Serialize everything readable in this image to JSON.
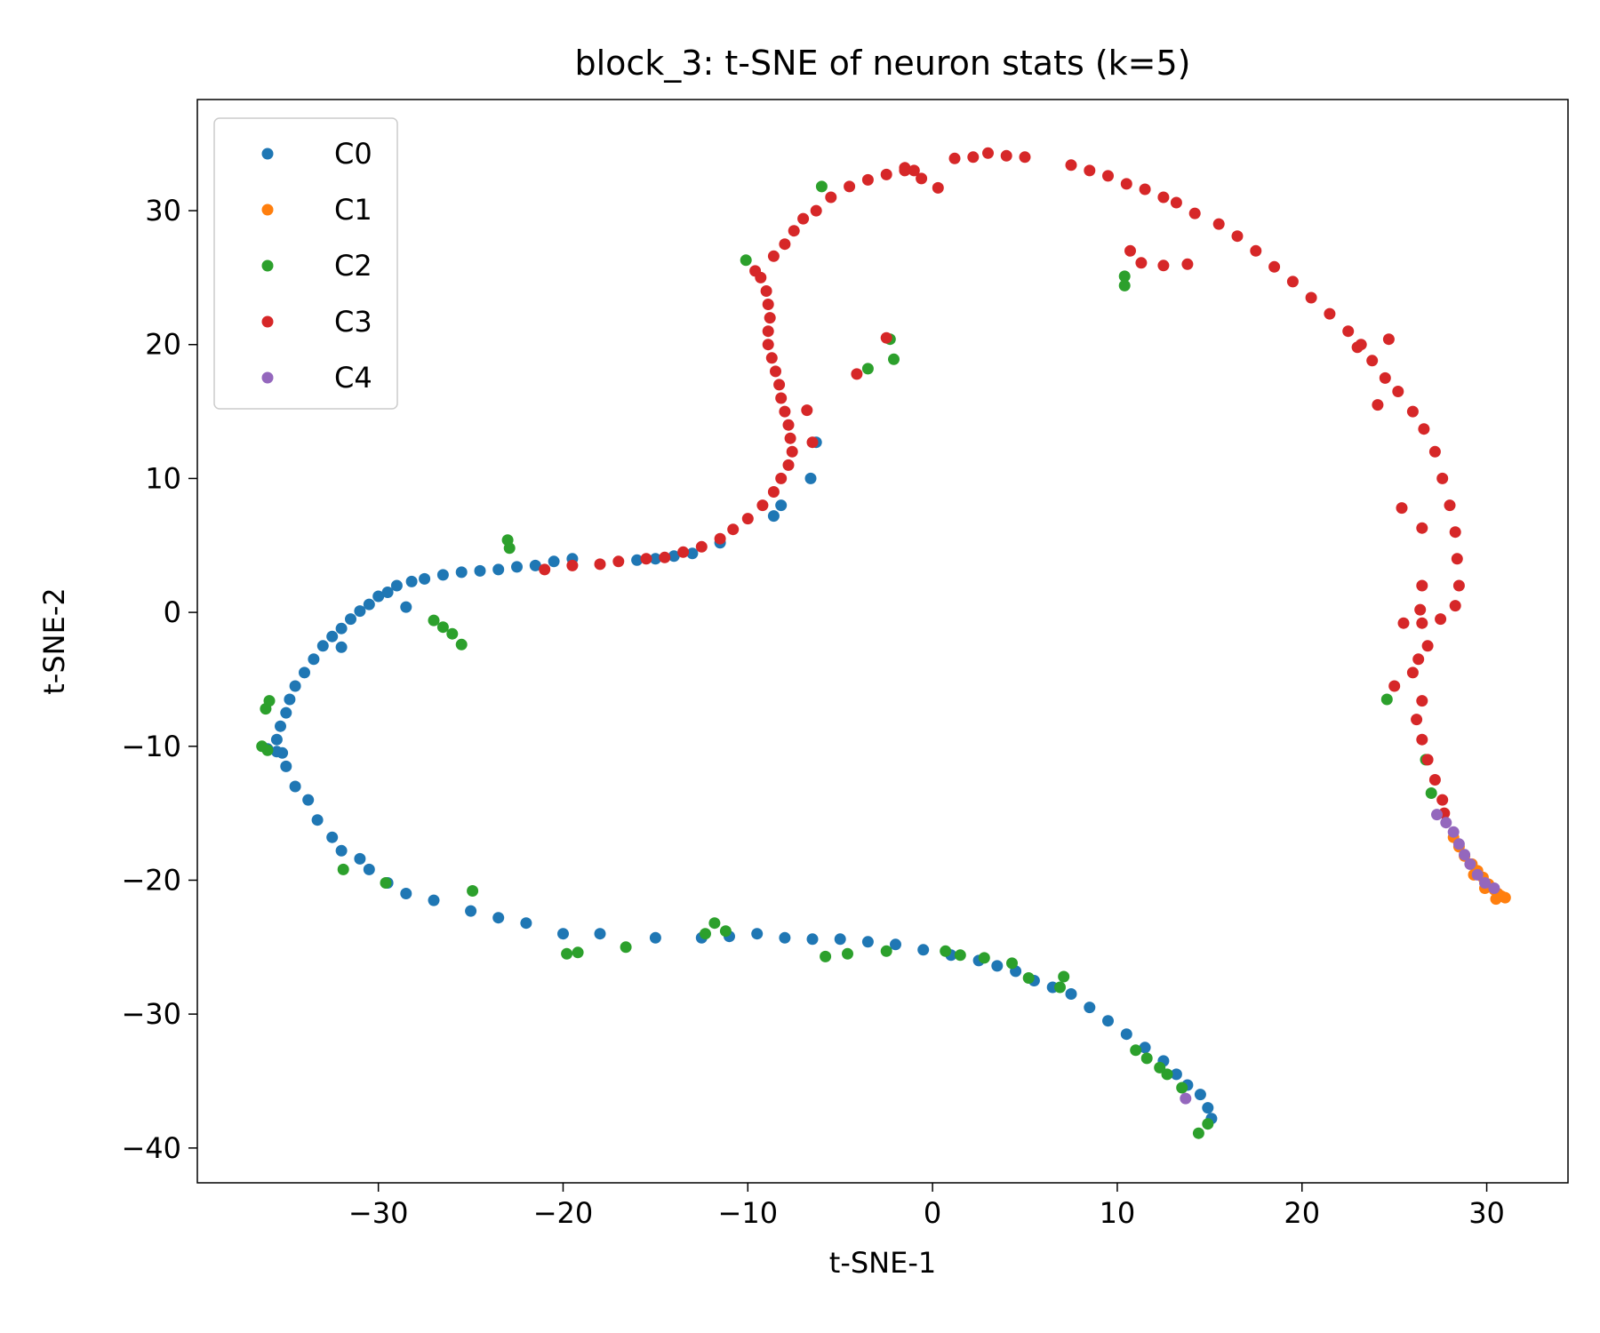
{
  "chart_data": {
    "type": "scatter",
    "title": "block_3: t-SNE of neuron stats (k=5)",
    "xlabel": "t-SNE-1",
    "ylabel": "t-SNE-2",
    "xlim": [
      -39.8,
      34.4
    ],
    "ylim": [
      -42.6,
      38.3
    ],
    "xticks": [
      -30,
      -20,
      -10,
      0,
      10,
      20,
      30
    ],
    "yticks": [
      -40,
      -30,
      -20,
      -10,
      0,
      10,
      20,
      30
    ],
    "xtick_labels": [
      "−30",
      "−20",
      "−10",
      "0",
      "10",
      "20",
      "30"
    ],
    "ytick_labels": [
      "−40",
      "−30",
      "−20",
      "−10",
      "0",
      "10",
      "20",
      "30"
    ],
    "grid": false,
    "legend_position": "upper-left",
    "series": [
      {
        "name": "C0",
        "color": "#1f77b4",
        "points": [
          [
            -15,
            -24.3
          ],
          [
            -18,
            -24
          ],
          [
            -20,
            -24
          ],
          [
            -22,
            -23.2
          ],
          [
            -23.5,
            -22.8
          ],
          [
            -25,
            -22.3
          ],
          [
            -27,
            -21.5
          ],
          [
            -28.5,
            -21
          ],
          [
            -29.5,
            -20.2
          ],
          [
            -30.5,
            -19.2
          ],
          [
            -31,
            -18.4
          ],
          [
            -32,
            -17.8
          ],
          [
            -32.5,
            -16.8
          ],
          [
            -33.3,
            -15.5
          ],
          [
            -33.8,
            -14
          ],
          [
            -34.5,
            -13
          ],
          [
            -35,
            -11.5
          ],
          [
            -35.2,
            -10.5
          ],
          [
            -35.5,
            -9.5
          ],
          [
            -35.3,
            -8.5
          ],
          [
            -35,
            -7.5
          ],
          [
            -34.8,
            -6.5
          ],
          [
            -34.5,
            -5.5
          ],
          [
            -34,
            -4.5
          ],
          [
            -33.5,
            -3.5
          ],
          [
            -33,
            -2.5
          ],
          [
            -32.5,
            -1.8
          ],
          [
            -32,
            -1.2
          ],
          [
            -31.5,
            -0.5
          ],
          [
            -31,
            0.1
          ],
          [
            -30.5,
            0.6
          ],
          [
            -30,
            1.2
          ],
          [
            -29.5,
            1.5
          ],
          [
            -29,
            2
          ],
          [
            -28.2,
            2.3
          ],
          [
            -27.5,
            2.5
          ],
          [
            -26.5,
            2.8
          ],
          [
            -25.5,
            3
          ],
          [
            -24.5,
            3.1
          ],
          [
            -23.5,
            3.2
          ],
          [
            -22.5,
            3.4
          ],
          [
            -21.5,
            3.5
          ],
          [
            -20.5,
            3.8
          ],
          [
            -19.5,
            4
          ],
          [
            -16,
            3.9
          ],
          [
            -15,
            4
          ],
          [
            -14,
            4.2
          ],
          [
            -13,
            4.4
          ],
          [
            -11.5,
            5.2
          ],
          [
            -32,
            -2.6
          ],
          [
            -28.5,
            0.4
          ],
          [
            -35.5,
            -10.4
          ],
          [
            -36,
            -10.2
          ],
          [
            -6.6,
            10
          ],
          [
            -6.3,
            12.7
          ],
          [
            -8.2,
            8
          ],
          [
            -8.6,
            7.2
          ],
          [
            -12.5,
            -24.3
          ],
          [
            -11,
            -24.2
          ],
          [
            -9.5,
            -24
          ],
          [
            -8,
            -24.3
          ],
          [
            -6.5,
            -24.4
          ],
          [
            -5,
            -24.4
          ],
          [
            -3.5,
            -24.6
          ],
          [
            -2,
            -24.8
          ],
          [
            -0.5,
            -25.2
          ],
          [
            1,
            -25.6
          ],
          [
            2.5,
            -26
          ],
          [
            3.5,
            -26.4
          ],
          [
            4.5,
            -26.8
          ],
          [
            5.5,
            -27.5
          ],
          [
            6.5,
            -28
          ],
          [
            7.5,
            -28.5
          ],
          [
            8.5,
            -29.5
          ],
          [
            9.5,
            -30.5
          ],
          [
            10.5,
            -31.5
          ],
          [
            11.5,
            -32.5
          ],
          [
            12.5,
            -33.5
          ],
          [
            13.2,
            -34.5
          ],
          [
            13.8,
            -35.3
          ],
          [
            14.5,
            -36
          ],
          [
            14.9,
            -37
          ],
          [
            15.1,
            -37.8
          ]
        ]
      },
      {
        "name": "C1",
        "color": "#ff7f0e",
        "points": [
          [
            28.2,
            -16.8
          ],
          [
            28.5,
            -17.5
          ],
          [
            28.8,
            -18.2
          ],
          [
            29.2,
            -18.8
          ],
          [
            29.5,
            -19.3
          ],
          [
            29.8,
            -19.8
          ],
          [
            30.1,
            -20.3
          ],
          [
            30.4,
            -20.7
          ],
          [
            30.6,
            -21
          ],
          [
            30.8,
            -21.2
          ],
          [
            31,
            -21.3
          ],
          [
            30.5,
            -21.4
          ],
          [
            29.9,
            -20.6
          ],
          [
            29.3,
            -19.6
          ]
        ]
      },
      {
        "name": "C2",
        "color": "#2ca02c",
        "points": [
          [
            -36.3,
            -10
          ],
          [
            -36,
            -10.3
          ],
          [
            -36.1,
            -7.2
          ],
          [
            -35.9,
            -6.6
          ],
          [
            -27,
            -0.6
          ],
          [
            -26.5,
            -1.1
          ],
          [
            -26,
            -1.6
          ],
          [
            -25.5,
            -2.4
          ],
          [
            -23,
            5.4
          ],
          [
            -22.9,
            4.8
          ],
          [
            -31.9,
            -19.2
          ],
          [
            -29.6,
            -20.2
          ],
          [
            -24.9,
            -20.8
          ],
          [
            -19.8,
            -25.5
          ],
          [
            -19.2,
            -25.4
          ],
          [
            -16.6,
            -25
          ],
          [
            -12.3,
            -24
          ],
          [
            -11.2,
            -23.8
          ],
          [
            -11.8,
            -23.2
          ],
          [
            -5.8,
            -25.7
          ],
          [
            -4.6,
            -25.5
          ],
          [
            -2.5,
            -25.3
          ],
          [
            0.7,
            -25.3
          ],
          [
            1.5,
            -25.6
          ],
          [
            2.8,
            -25.8
          ],
          [
            4.3,
            -26.2
          ],
          [
            5.2,
            -27.3
          ],
          [
            6.9,
            -28
          ],
          [
            7.1,
            -27.2
          ],
          [
            11,
            -32.7
          ],
          [
            11.6,
            -33.3
          ],
          [
            12.3,
            -34
          ],
          [
            12.7,
            -34.5
          ],
          [
            13.5,
            -35.5
          ],
          [
            14.4,
            -38.9
          ],
          [
            14.9,
            -38.2
          ],
          [
            -10.1,
            26.3
          ],
          [
            -6,
            31.8
          ],
          [
            -3.5,
            18.2
          ],
          [
            -2.3,
            20.4
          ],
          [
            -2.1,
            18.9
          ],
          [
            10.4,
            25.1
          ],
          [
            10.4,
            24.4
          ],
          [
            24.6,
            -6.5
          ],
          [
            26.7,
            -11
          ],
          [
            27,
            -13.5
          ]
        ]
      },
      {
        "name": "C3",
        "color": "#d62728",
        "points": [
          [
            -21,
            3.2
          ],
          [
            -19.5,
            3.5
          ],
          [
            -18,
            3.6
          ],
          [
            -17,
            3.8
          ],
          [
            -15.5,
            4
          ],
          [
            -14.5,
            4.1
          ],
          [
            -13.5,
            4.5
          ],
          [
            -12.5,
            4.9
          ],
          [
            -11.5,
            5.5
          ],
          [
            -10.8,
            6.2
          ],
          [
            -10,
            7
          ],
          [
            -9.2,
            8
          ],
          [
            -8.6,
            9
          ],
          [
            -8.2,
            10
          ],
          [
            -7.8,
            11
          ],
          [
            -7.6,
            12
          ],
          [
            -7.7,
            13
          ],
          [
            -7.8,
            14
          ],
          [
            -8,
            15
          ],
          [
            -8.2,
            16
          ],
          [
            -8.3,
            17
          ],
          [
            -8.5,
            18
          ],
          [
            -8.7,
            19
          ],
          [
            -8.9,
            20
          ],
          [
            -8.9,
            21
          ],
          [
            -8.8,
            22
          ],
          [
            -8.9,
            23
          ],
          [
            -9,
            24
          ],
          [
            -9.3,
            25
          ],
          [
            -9.6,
            25.5
          ],
          [
            -8.6,
            26.6
          ],
          [
            -8,
            27.5
          ],
          [
            -7.5,
            28.5
          ],
          [
            -7,
            29.4
          ],
          [
            -6.3,
            30
          ],
          [
            -5.5,
            31
          ],
          [
            -4.5,
            31.8
          ],
          [
            -3.5,
            32.3
          ],
          [
            -2.5,
            32.7
          ],
          [
            -1.5,
            33.2
          ],
          [
            -0.6,
            32.4
          ],
          [
            0.3,
            31.7
          ],
          [
            1.2,
            33.9
          ],
          [
            2.2,
            34
          ],
          [
            3,
            34.3
          ],
          [
            4,
            34.1
          ],
          [
            5,
            34
          ],
          [
            7.5,
            33.4
          ],
          [
            8.5,
            33
          ],
          [
            9.5,
            32.6
          ],
          [
            10.5,
            32
          ],
          [
            11.5,
            31.6
          ],
          [
            12.5,
            31
          ],
          [
            13.2,
            30.6
          ],
          [
            14.2,
            29.8
          ],
          [
            15.5,
            29
          ],
          [
            16.5,
            28.1
          ],
          [
            17.5,
            27
          ],
          [
            18.5,
            25.8
          ],
          [
            19.5,
            24.7
          ],
          [
            20.5,
            23.5
          ],
          [
            21.5,
            22.3
          ],
          [
            22.5,
            21
          ],
          [
            23.2,
            20
          ],
          [
            23.8,
            18.8
          ],
          [
            24.5,
            17.5
          ],
          [
            25.2,
            16.5
          ],
          [
            26,
            15
          ],
          [
            26.6,
            13.7
          ],
          [
            27.2,
            12
          ],
          [
            27.6,
            10
          ],
          [
            28,
            8
          ],
          [
            28.3,
            6
          ],
          [
            28.4,
            4
          ],
          [
            28.5,
            2
          ],
          [
            28.3,
            0.5
          ],
          [
            27.5,
            -0.5
          ],
          [
            26.5,
            -0.8
          ],
          [
            25.5,
            -0.8
          ],
          [
            26.8,
            -2.5
          ],
          [
            26.3,
            -3.5
          ],
          [
            26,
            -4.5
          ],
          [
            25,
            -5.5
          ],
          [
            26.5,
            -6.6
          ],
          [
            26.2,
            -8
          ],
          [
            26.5,
            -9.5
          ],
          [
            26.8,
            -11
          ],
          [
            27.2,
            -12.5
          ],
          [
            27.6,
            -14
          ],
          [
            27.7,
            -15
          ],
          [
            -6.5,
            12.7
          ],
          [
            -6.8,
            15.1
          ],
          [
            -4.1,
            17.8
          ],
          [
            -2.5,
            20.5
          ],
          [
            10.7,
            27
          ],
          [
            11.3,
            26.1
          ],
          [
            12.5,
            25.9
          ],
          [
            13.8,
            26
          ],
          [
            24.1,
            15.5
          ],
          [
            25.4,
            7.8
          ],
          [
            26.5,
            6.3
          ],
          [
            26.5,
            2
          ],
          [
            26.4,
            0.2
          ],
          [
            24.7,
            20.4
          ],
          [
            23,
            19.8
          ],
          [
            -1.5,
            33
          ],
          [
            -1,
            33
          ]
        ]
      },
      {
        "name": "C4",
        "color": "#9467bd",
        "points": [
          [
            27.3,
            -15.1
          ],
          [
            27.8,
            -15.7
          ],
          [
            28.2,
            -16.4
          ],
          [
            28.5,
            -17.3
          ],
          [
            28.8,
            -18.1
          ],
          [
            29.1,
            -18.8
          ],
          [
            29.5,
            -19.6
          ],
          [
            29.9,
            -20.2
          ],
          [
            30.4,
            -20.6
          ],
          [
            13.7,
            -36.3
          ]
        ]
      }
    ]
  }
}
